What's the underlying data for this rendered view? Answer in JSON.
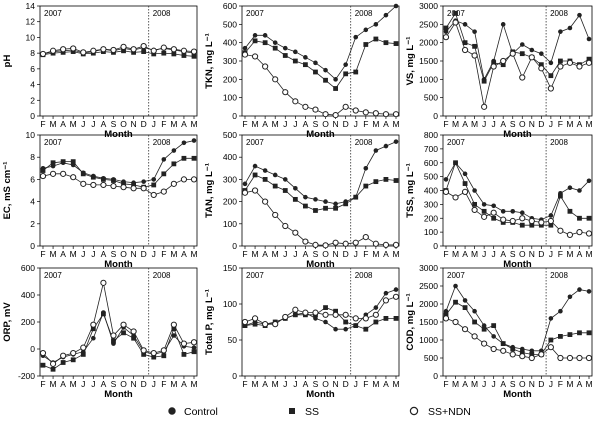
{
  "legend": [
    {
      "label": "Control",
      "marker": "circle-filled"
    },
    {
      "label": "SS",
      "marker": "square-filled"
    },
    {
      "label": "SS+NDN",
      "marker": "circle-open"
    }
  ],
  "chart_data": [
    {
      "type": "line",
      "ylabel": "pH",
      "xlabel": "Month",
      "years": [
        "2007",
        "2008"
      ],
      "ylim": [
        0,
        14
      ],
      "yticks": [
        0,
        2,
        4,
        6,
        8,
        10,
        12,
        14
      ],
      "categories": [
        "F",
        "M",
        "A",
        "M",
        "J",
        "J",
        "A",
        "S",
        "O",
        "N",
        "D",
        "J",
        "F",
        "M",
        "A",
        "M"
      ],
      "series": [
        {
          "name": "Control",
          "marker": "circle-filled",
          "values": [
            7.9,
            8.2,
            8.3,
            8.4,
            8.0,
            8.2,
            8.5,
            8.3,
            8.6,
            8.4,
            8.7,
            8.4,
            8.6,
            8.4,
            8.2,
            8.0
          ]
        },
        {
          "name": "SS",
          "marker": "square-filled",
          "values": [
            7.8,
            8.0,
            8.1,
            8.2,
            7.9,
            8.0,
            8.2,
            8.1,
            8.3,
            8.1,
            8.2,
            7.9,
            8.0,
            7.9,
            7.7,
            7.6
          ]
        },
        {
          "name": "SS+NDN",
          "marker": "circle-open",
          "values": [
            7.9,
            8.3,
            8.5,
            8.6,
            8.1,
            8.3,
            8.5,
            8.4,
            8.8,
            8.5,
            8.9,
            8.3,
            8.7,
            8.5,
            8.3,
            8.2
          ]
        }
      ]
    },
    {
      "type": "line",
      "ylabel": "TKN, mg L⁻¹",
      "xlabel": "Month",
      "years": [
        "2007",
        "2008"
      ],
      "ylim": [
        0,
        600
      ],
      "yticks": [
        0,
        100,
        200,
        300,
        400,
        500,
        600
      ],
      "categories": [
        "F",
        "M",
        "A",
        "M",
        "J",
        "J",
        "A",
        "S",
        "O",
        "N",
        "D",
        "J",
        "F",
        "M",
        "A",
        "M"
      ],
      "series": [
        {
          "name": "Control",
          "marker": "circle-filled",
          "values": [
            370,
            440,
            440,
            400,
            370,
            350,
            320,
            290,
            250,
            200,
            280,
            430,
            470,
            500,
            550,
            600
          ]
        },
        {
          "name": "SS",
          "marker": "square-filled",
          "values": [
            345,
            410,
            400,
            370,
            330,
            300,
            280,
            240,
            195,
            150,
            230,
            240,
            390,
            420,
            400,
            395
          ]
        },
        {
          "name": "SS+NDN",
          "marker": "circle-open",
          "values": [
            335,
            325,
            270,
            200,
            130,
            80,
            50,
            35,
            10,
            5,
            50,
            30,
            20,
            15,
            10,
            10
          ]
        }
      ]
    },
    {
      "type": "line",
      "ylabel": "VS, mg L⁻¹",
      "xlabel": "Month",
      "years": [
        "2007",
        "2008"
      ],
      "ylim": [
        0,
        3000
      ],
      "yticks": [
        0,
        500,
        1000,
        1500,
        2000,
        2500,
        3000
      ],
      "categories": [
        "F",
        "M",
        "A",
        "M",
        "J",
        "J",
        "A",
        "S",
        "O",
        "N",
        "D",
        "J",
        "F",
        "M",
        "A",
        "M"
      ],
      "series": [
        {
          "name": "Control",
          "marker": "circle-filled",
          "values": [
            2300,
            2600,
            2500,
            2300,
            1000,
            1500,
            2500,
            1700,
            1950,
            1800,
            1700,
            1450,
            2300,
            2400,
            2750,
            2100
          ]
        },
        {
          "name": "SS",
          "marker": "square-filled",
          "values": [
            2400,
            2800,
            2000,
            1900,
            950,
            1450,
            1400,
            1750,
            1700,
            1600,
            1400,
            1100,
            1500,
            1500,
            1400,
            1550
          ]
        },
        {
          "name": "SS+NDN",
          "marker": "circle-open",
          "values": [
            2150,
            2550,
            1800,
            1650,
            250,
            1350,
            1500,
            1700,
            1050,
            1600,
            1300,
            750,
            1350,
            1450,
            1350,
            1450
          ]
        }
      ]
    },
    {
      "type": "line",
      "ylabel": "EC, mS cm⁻¹",
      "xlabel": "Month",
      "years": [
        "2007",
        "2008"
      ],
      "ylim": [
        0,
        10
      ],
      "yticks": [
        0,
        2,
        4,
        6,
        8,
        10
      ],
      "categories": [
        "F",
        "M",
        "A",
        "M",
        "J",
        "J",
        "A",
        "S",
        "O",
        "N",
        "D",
        "J",
        "F",
        "M",
        "A",
        "M"
      ],
      "series": [
        {
          "name": "Control",
          "marker": "circle-filled",
          "values": [
            7.0,
            7.2,
            7.5,
            7.3,
            6.6,
            6.3,
            6.1,
            6.0,
            5.8,
            5.7,
            5.8,
            6.0,
            7.8,
            8.6,
            9.3,
            9.5
          ]
        },
        {
          "name": "SS",
          "marker": "square-filled",
          "values": [
            6.8,
            7.5,
            7.6,
            7.6,
            6.5,
            6.2,
            6.0,
            5.9,
            5.6,
            5.5,
            5.3,
            5.5,
            6.5,
            7.4,
            7.9,
            7.9
          ]
        },
        {
          "name": "SS+NDN",
          "marker": "circle-open",
          "values": [
            6.3,
            6.5,
            6.5,
            6.2,
            5.6,
            5.5,
            5.5,
            5.4,
            5.3,
            5.2,
            5.2,
            4.6,
            4.9,
            5.6,
            6.0,
            6.0
          ]
        }
      ]
    },
    {
      "type": "line",
      "ylabel": "TAN, mg L⁻¹",
      "xlabel": "Month",
      "years": [
        "2007",
        "2008"
      ],
      "ylim": [
        0,
        500
      ],
      "yticks": [
        0,
        100,
        200,
        300,
        400,
        500
      ],
      "categories": [
        "F",
        "M",
        "A",
        "M",
        "J",
        "J",
        "A",
        "S",
        "O",
        "N",
        "D",
        "J",
        "F",
        "M",
        "A",
        "M"
      ],
      "series": [
        {
          "name": "Control",
          "marker": "circle-filled",
          "values": [
            280,
            360,
            340,
            320,
            300,
            260,
            220,
            210,
            200,
            190,
            200,
            220,
            350,
            430,
            450,
            470
          ]
        },
        {
          "name": "SS",
          "marker": "square-filled",
          "values": [
            250,
            320,
            300,
            270,
            250,
            210,
            180,
            160,
            170,
            170,
            190,
            220,
            270,
            290,
            300,
            295
          ]
        },
        {
          "name": "SS+NDN",
          "marker": "circle-open",
          "values": [
            240,
            250,
            200,
            140,
            90,
            60,
            20,
            5,
            3,
            15,
            10,
            15,
            40,
            10,
            5,
            5
          ]
        }
      ]
    },
    {
      "type": "line",
      "ylabel": "TSS, mg L⁻¹",
      "xlabel": "Month",
      "years": [
        "2007",
        "2008"
      ],
      "ylim": [
        0,
        800
      ],
      "yticks": [
        0,
        100,
        200,
        300,
        400,
        500,
        600,
        700,
        800
      ],
      "categories": [
        "F",
        "M",
        "A",
        "M",
        "J",
        "J",
        "A",
        "S",
        "O",
        "N",
        "D",
        "J",
        "F",
        "M",
        "A",
        "M"
      ],
      "series": [
        {
          "name": "Control",
          "marker": "circle-filled",
          "values": [
            480,
            600,
            520,
            400,
            300,
            290,
            250,
            250,
            240,
            200,
            190,
            220,
            380,
            420,
            400,
            470
          ]
        },
        {
          "name": "SS",
          "marker": "square-filled",
          "values": [
            400,
            600,
            450,
            300,
            250,
            200,
            170,
            170,
            150,
            150,
            150,
            150,
            360,
            250,
            200,
            200
          ]
        },
        {
          "name": "SS+NDN",
          "marker": "circle-open",
          "values": [
            390,
            350,
            390,
            260,
            210,
            240,
            190,
            180,
            200,
            180,
            170,
            180,
            110,
            80,
            100,
            90
          ]
        }
      ]
    },
    {
      "type": "line",
      "ylabel": "ORP, mV",
      "xlabel": "Month",
      "years": [
        "2007",
        "2008"
      ],
      "ylim": [
        -200,
        600
      ],
      "yticks": [
        -200,
        0,
        200,
        400,
        600
      ],
      "categories": [
        "F",
        "M",
        "A",
        "M",
        "J",
        "J",
        "A",
        "S",
        "O",
        "N",
        "D",
        "J",
        "F",
        "M",
        "A",
        "M"
      ],
      "series": [
        {
          "name": "Control",
          "marker": "circle-filled",
          "values": [
            -50,
            -100,
            -60,
            -40,
            -20,
            80,
            270,
            40,
            160,
            100,
            -20,
            -40,
            -20,
            100,
            20,
            10
          ]
        },
        {
          "name": "SS",
          "marker": "square-filled",
          "values": [
            -120,
            -150,
            -100,
            -80,
            -40,
            150,
            260,
            60,
            120,
            80,
            -40,
            -60,
            -50,
            150,
            -40,
            -20
          ]
        },
        {
          "name": "SS+NDN",
          "marker": "circle-open",
          "values": [
            -30,
            -110,
            -50,
            -30,
            10,
            180,
            490,
            100,
            180,
            130,
            -10,
            -30,
            -10,
            180,
            40,
            50
          ]
        }
      ]
    },
    {
      "type": "line",
      "ylabel": "Total P, mg L⁻¹",
      "xlabel": "Month",
      "years": [
        "2007",
        "2008"
      ],
      "ylim": [
        0,
        150
      ],
      "yticks": [
        0,
        50,
        100,
        150
      ],
      "categories": [
        "F",
        "M",
        "A",
        "M",
        "J",
        "J",
        "A",
        "S",
        "O",
        "N",
        "D",
        "J",
        "F",
        "M",
        "A",
        "M"
      ],
      "series": [
        {
          "name": "Control",
          "marker": "circle-filled",
          "values": [
            70,
            75,
            72,
            75,
            80,
            85,
            88,
            80,
            75,
            65,
            65,
            70,
            85,
            95,
            115,
            120
          ]
        },
        {
          "name": "SS",
          "marker": "square-filled",
          "values": [
            70,
            72,
            70,
            75,
            80,
            85,
            85,
            85,
            95,
            90,
            75,
            70,
            65,
            75,
            80,
            80
          ]
        },
        {
          "name": "SS+NDN",
          "marker": "circle-open",
          "values": [
            75,
            80,
            72,
            72,
            82,
            92,
            88,
            88,
            85,
            85,
            85,
            80,
            80,
            85,
            105,
            110
          ]
        }
      ]
    },
    {
      "type": "line",
      "ylabel": "COD, mg L⁻¹",
      "xlabel": "Month",
      "years": [
        "2007",
        "2008"
      ],
      "ylim": [
        0,
        3000
      ],
      "yticks": [
        0,
        500,
        1000,
        1500,
        2000,
        2500,
        3000
      ],
      "categories": [
        "F",
        "M",
        "A",
        "M",
        "J",
        "J",
        "A",
        "S",
        "O",
        "N",
        "D",
        "J",
        "F",
        "M",
        "A",
        "M"
      ],
      "series": [
        {
          "name": "Control",
          "marker": "circle-filled",
          "values": [
            1800,
            2500,
            2100,
            1800,
            1400,
            1100,
            900,
            800,
            750,
            700,
            700,
            1600,
            1800,
            2200,
            2400,
            2350
          ]
        },
        {
          "name": "SS",
          "marker": "square-filled",
          "values": [
            1700,
            2050,
            1900,
            1500,
            1300,
            1400,
            900,
            750,
            650,
            600,
            600,
            1000,
            1100,
            1150,
            1200,
            1200
          ]
        },
        {
          "name": "SS+NDN",
          "marker": "circle-open",
          "values": [
            1600,
            1500,
            1300,
            1100,
            900,
            750,
            700,
            600,
            550,
            500,
            600,
            800,
            500,
            500,
            500,
            500
          ]
        }
      ]
    }
  ]
}
